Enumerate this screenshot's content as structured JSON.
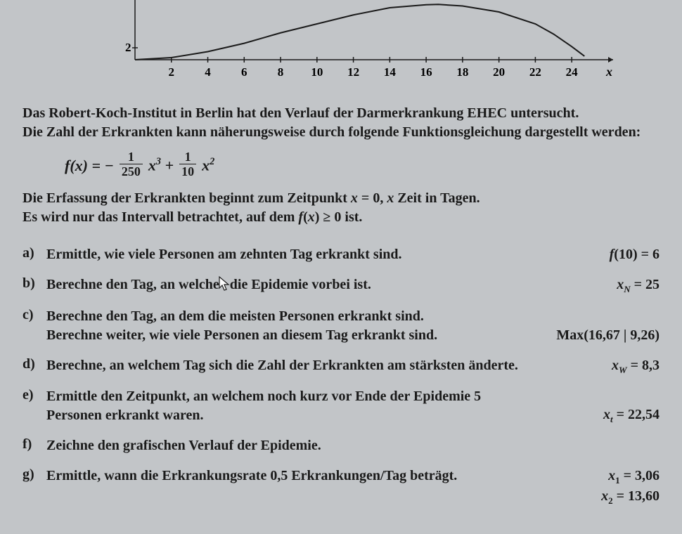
{
  "chart": {
    "xlim": [
      0,
      25.5
    ],
    "ylim": [
      0,
      10
    ],
    "xticks": [
      2,
      4,
      6,
      8,
      10,
      12,
      14,
      16,
      18,
      20,
      22,
      24
    ],
    "ytick_label": "2",
    "axis_label_x": "x",
    "axis_color": "#1a1a1a",
    "curve_color": "#1a1a1a",
    "curve_points": [
      [
        0,
        0
      ],
      [
        2,
        0.35
      ],
      [
        4,
        1.35
      ],
      [
        6,
        2.75
      ],
      [
        8,
        4.5
      ],
      [
        10,
        6.0
      ],
      [
        12,
        7.5
      ],
      [
        14,
        8.7
      ],
      [
        16,
        9.2
      ],
      [
        16.67,
        9.26
      ],
      [
        18,
        9.0
      ],
      [
        20,
        8.0
      ],
      [
        22,
        6.0
      ],
      [
        23,
        4.3
      ],
      [
        24,
        2.2
      ],
      [
        24.7,
        0.6
      ]
    ]
  },
  "intro_line1": "Das Robert-Koch-Institut in Berlin hat den Verlauf der Darmerkrankung EHEC untersucht.",
  "intro_line2": "Die Zahl der Erkrankten kann näherungsweise durch folgende Funktionsgleichung dargestellt werden:",
  "formula": {
    "lhs": "f(x) = −",
    "frac1_num": "1",
    "frac1_den": "250",
    "mid1": "x³ +",
    "frac2_num": "1",
    "frac2_den": "10",
    "tail": "x²"
  },
  "erfassung_line1": "Die Erfassung der Erkrankten beginnt zum Zeitpunkt x = 0, x Zeit in Tagen.",
  "erfassung_line2": "Es wird nur das Intervall betrachtet, auf dem f(x) ≥ 0 ist.",
  "q": {
    "a": {
      "label": "a)",
      "text": "Ermittle, wie viele Personen am zehnten Tag erkrankt sind.",
      "ans": "f(10) = 6"
    },
    "b": {
      "label": "b)",
      "text_pre": "Berechne den Tag, an welche",
      "text_post": "die Epidemie vorbei ist.",
      "ans_pre": "x",
      "ans_sub": "N",
      "ans_post": " = 25"
    },
    "c": {
      "label": "c)",
      "text1": "Berechne den Tag, an dem die meisten Personen erkrankt sind.",
      "text2": "Berechne weiter, wie viele Personen an diesem Tag erkrankt sind.",
      "ans": "Max(16,67 | 9,26)"
    },
    "d": {
      "label": "d)",
      "text": "Berechne, an welchem Tag sich die Zahl der Erkrankten am stärksten änderte.",
      "ans_pre": "x",
      "ans_sub": "W",
      "ans_post": " = 8,3"
    },
    "e": {
      "label": "e)",
      "text": "Ermittle den Zeitpunkt, an welchem noch kurz vor Ende der Epidemie 5 Personen erkrankt waren.",
      "ans_pre": "x",
      "ans_sub": "t",
      "ans_post": " = 22,54"
    },
    "f": {
      "label": "f)",
      "text": "Zeichne den grafischen Verlauf der Epidemie."
    },
    "g": {
      "label": "g)",
      "text": "Ermittle, wann die Erkrankungsrate 0,5 Erkrankungen/Tag beträgt.",
      "ans1_pre": "x",
      "ans1_sub": "1",
      "ans1_post": " = 3,06",
      "ans2_pre": "x",
      "ans2_sub": "2",
      "ans2_post": " = 13,60"
    }
  }
}
